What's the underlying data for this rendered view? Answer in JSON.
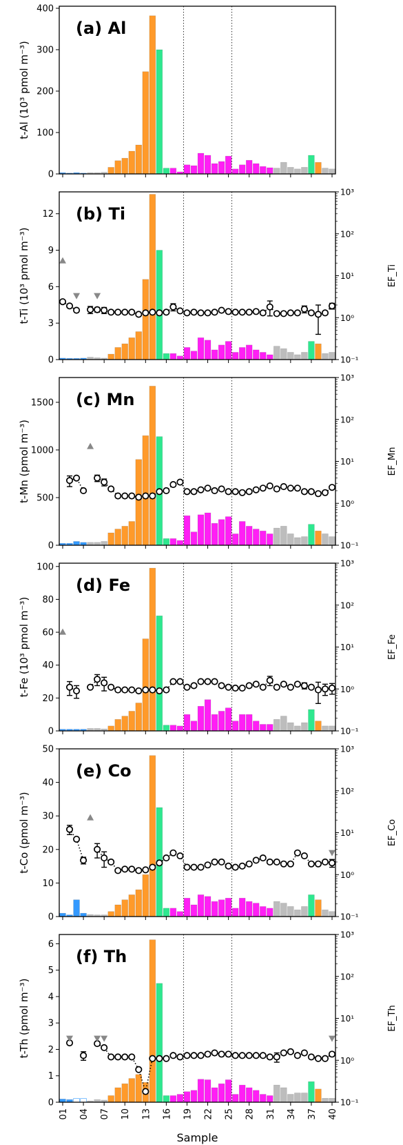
{
  "figure": {
    "xlabel": "Sample",
    "xtick_labels": [
      "01",
      "04",
      "07",
      "10",
      "13",
      "16",
      "19",
      "22",
      "25",
      "28",
      "31",
      "34",
      "37",
      "40"
    ],
    "xtick_samples": [
      1,
      4,
      7,
      10,
      13,
      16,
      19,
      22,
      25,
      28,
      31,
      34,
      37,
      40
    ],
    "dotted_lines_at": [
      18.5,
      25.5
    ]
  },
  "colors": {
    "blue": "#3399ff",
    "orange": "#ff9a2a",
    "green": "#2ee88f",
    "magenta": "#ff1ff5",
    "gray": "#bdbdbd",
    "errorbar": "#555555",
    "missing_marker": "#888888"
  },
  "bar_colors": [
    "blue",
    "blue",
    "blue",
    "blue",
    "gray",
    "gray",
    "gray",
    "orange",
    "orange",
    "orange",
    "orange",
    "orange",
    "orange",
    "orange",
    "green",
    "green",
    "magenta",
    "magenta",
    "magenta",
    "magenta",
    "magenta",
    "magenta",
    "magenta",
    "magenta",
    "magenta",
    "magenta",
    "magenta",
    "magenta",
    "magenta",
    "magenta",
    "magenta",
    "gray",
    "gray",
    "gray",
    "gray",
    "gray",
    "green",
    "orange",
    "gray",
    "gray"
  ],
  "chart_data": [
    {
      "type": "bar",
      "panel_label": "(a) Al",
      "ylabel": "t-Al  (10³ pmol m⁻³)",
      "ylim": [
        0,
        405
      ],
      "yticks": [
        0,
        100,
        200,
        300,
        400
      ],
      "x": [
        1,
        2,
        3,
        4,
        5,
        6,
        7,
        8,
        9,
        10,
        11,
        12,
        13,
        14,
        15,
        16,
        17,
        18,
        19,
        20,
        21,
        22,
        23,
        24,
        25,
        26,
        27,
        28,
        29,
        30,
        31,
        32,
        33,
        34,
        35,
        36,
        37,
        38,
        39,
        40
      ],
      "values": [
        3,
        2,
        3,
        2,
        3,
        3,
        4,
        16,
        32,
        38,
        55,
        70,
        247,
        382,
        300,
        14,
        14,
        5,
        22,
        20,
        50,
        45,
        25,
        30,
        43,
        12,
        22,
        33,
        25,
        18,
        15,
        14,
        28,
        16,
        12,
        16,
        45,
        28,
        14,
        12
      ],
      "has_ef": false
    },
    {
      "type": "bar",
      "panel_label": "(b) Ti",
      "ylabel": "t-Ti  (10³ pmol m⁻³)",
      "ylim": [
        0,
        13.8
      ],
      "yticks": [
        0,
        3,
        6,
        9,
        12
      ],
      "x": [
        1,
        2,
        3,
        4,
        5,
        6,
        7,
        8,
        9,
        10,
        11,
        12,
        13,
        14,
        15,
        16,
        17,
        18,
        19,
        20,
        21,
        22,
        23,
        24,
        25,
        26,
        27,
        28,
        29,
        30,
        31,
        32,
        33,
        34,
        35,
        36,
        37,
        38,
        39,
        40
      ],
      "values": [
        0.12,
        0.1,
        0.1,
        0.12,
        0.2,
        0.15,
        0.12,
        0.45,
        1.0,
        1.3,
        1.8,
        2.3,
        6.6,
        13.6,
        9.0,
        0.5,
        0.5,
        0.3,
        1.0,
        0.7,
        1.8,
        1.6,
        0.8,
        1.2,
        1.5,
        0.6,
        1.0,
        1.2,
        0.8,
        0.6,
        0.4,
        1.1,
        0.9,
        0.6,
        0.4,
        0.6,
        1.5,
        1.3,
        0.5,
        0.6
      ],
      "ef_axis_label": "EF_Ti",
      "ef_yticks": [
        "10⁻¹",
        "10⁰",
        "10¹",
        "10²",
        "10³"
      ],
      "ef": [
        2.4,
        1.9,
        1.5,
        null,
        1.55,
        1.55,
        1.5,
        1.35,
        1.35,
        1.35,
        1.35,
        1.2,
        1.3,
        1.35,
        1.3,
        1.35,
        1.8,
        1.45,
        1.3,
        1.35,
        1.3,
        1.3,
        1.35,
        1.5,
        1.4,
        1.35,
        1.35,
        1.35,
        1.4,
        1.3,
        1.8,
        1.25,
        1.25,
        1.3,
        1.3,
        1.6,
        1.3,
        1.2,
        1.3,
        1.9
      ],
      "ef_err": [
        0,
        0,
        0,
        0,
        0.3,
        0.2,
        0.25,
        0,
        0,
        0,
        0,
        0,
        0,
        0,
        0,
        0,
        0.35,
        0,
        0,
        0,
        0,
        0,
        0,
        0,
        0,
        0,
        0,
        0,
        0,
        0,
        0.7,
        0,
        0,
        0,
        0,
        0.3,
        0,
        0.8,
        0,
        0.3
      ],
      "ef_missing": [
        {
          "sample": 1,
          "dir": "up"
        },
        {
          "sample": 3,
          "dir": "down"
        },
        {
          "sample": 6,
          "dir": "down"
        }
      ]
    },
    {
      "type": "bar",
      "panel_label": "(c) Mn",
      "ylabel": "t-Mn  (pmol m⁻³)",
      "ylim": [
        0,
        1760
      ],
      "yticks": [
        0,
        500,
        1000,
        1500
      ],
      "x": [
        1,
        2,
        3,
        4,
        5,
        6,
        7,
        8,
        9,
        10,
        11,
        12,
        13,
        14,
        15,
        16,
        17,
        18,
        19,
        20,
        21,
        22,
        23,
        24,
        25,
        26,
        27,
        28,
        29,
        30,
        31,
        32,
        33,
        34,
        35,
        36,
        37,
        38,
        39,
        40
      ],
      "values": [
        20,
        20,
        40,
        30,
        30,
        30,
        40,
        130,
        170,
        200,
        250,
        900,
        1150,
        1670,
        1140,
        70,
        70,
        50,
        310,
        140,
        320,
        340,
        230,
        270,
        300,
        120,
        250,
        200,
        170,
        150,
        120,
        180,
        200,
        120,
        80,
        90,
        220,
        150,
        120,
        90
      ],
      "ef_axis_label": "EF_Mn",
      "ef_yticks": [
        "10⁻¹",
        "10⁰",
        "10¹",
        "10²",
        "10³"
      ],
      "ef": [
        null,
        3.5,
        4.0,
        2.0,
        null,
        4.0,
        3.2,
        2.2,
        1.5,
        1.5,
        1.5,
        1.4,
        1.5,
        1.5,
        1.9,
        2.0,
        2.8,
        3.2,
        1.9,
        1.9,
        2.1,
        2.3,
        2.0,
        2.2,
        1.9,
        1.9,
        1.8,
        1.9,
        2.1,
        2.3,
        2.6,
        2.2,
        2.5,
        2.3,
        2.3,
        1.9,
        1.9,
        1.7,
        1.8,
        2.4
      ],
      "ef_err": [
        0,
        1.0,
        0,
        0,
        0,
        0.7,
        0.6,
        0,
        0,
        0,
        0,
        0,
        0,
        0,
        0,
        0,
        0,
        0,
        0,
        0,
        0,
        0,
        0,
        0,
        0,
        0,
        0,
        0,
        0,
        0,
        0,
        0,
        0,
        0,
        0,
        0,
        0,
        0,
        0,
        0
      ],
      "ef_missing": [
        {
          "sample": 5,
          "dir": "up"
        }
      ]
    },
    {
      "type": "bar",
      "panel_label": "(d) Fe",
      "ylabel": "t-Fe  (10³ pmol m⁻³)",
      "ylim": [
        0,
        102
      ],
      "yticks": [
        0,
        20,
        40,
        60,
        80,
        100
      ],
      "x": [
        1,
        2,
        3,
        4,
        5,
        6,
        7,
        8,
        9,
        10,
        11,
        12,
        13,
        14,
        15,
        16,
        17,
        18,
        19,
        20,
        21,
        22,
        23,
        24,
        25,
        26,
        27,
        28,
        29,
        30,
        31,
        32,
        33,
        34,
        35,
        36,
        37,
        38,
        39,
        40
      ],
      "values": [
        1,
        1,
        1,
        1,
        1.5,
        1.5,
        1.2,
        3,
        7,
        9,
        12,
        17,
        56,
        99,
        70,
        3.5,
        3.5,
        3,
        10,
        6,
        15,
        19,
        10,
        12,
        14,
        6,
        10,
        10,
        6,
        4,
        4,
        7,
        9,
        5,
        3,
        5,
        13,
        6,
        3,
        3
      ],
      "ef_axis_label": "EF_Fe",
      "ef_yticks": [
        "10⁻¹",
        "10⁰",
        "10¹",
        "10²",
        "10³"
      ],
      "ef": [
        null,
        1.1,
        0.9,
        null,
        1.1,
        1.7,
        1.4,
        1.1,
        0.95,
        0.95,
        0.95,
        0.9,
        0.95,
        0.95,
        0.9,
        0.95,
        1.5,
        1.5,
        1.1,
        1.2,
        1.5,
        1.5,
        1.5,
        1.2,
        1.1,
        1.05,
        1.05,
        1.2,
        1.3,
        1.1,
        1.6,
        1.1,
        1.3,
        1.1,
        1.3,
        1.2,
        1.1,
        0.95,
        1.0,
        1.05
      ],
      "ef_err": [
        0,
        0.4,
        0.3,
        0,
        0,
        0.5,
        0.5,
        0,
        0,
        0,
        0,
        0,
        0,
        0,
        0,
        0,
        0,
        0,
        0,
        0,
        0,
        0,
        0,
        0,
        0,
        0,
        0,
        0,
        0,
        0,
        0.4,
        0,
        0,
        0,
        0,
        0.2,
        0,
        0.5,
        0.3,
        0.3
      ],
      "ef_missing": [
        {
          "sample": 1,
          "dir": "up"
        }
      ]
    },
    {
      "type": "bar",
      "panel_label": "(e) Co",
      "ylabel": "t-Co  (pmol m⁻³)",
      "ylim": [
        0,
        50
      ],
      "yticks": [
        0,
        10,
        20,
        30,
        40,
        50
      ],
      "x": [
        1,
        2,
        3,
        4,
        5,
        6,
        7,
        8,
        9,
        10,
        11,
        12,
        13,
        14,
        15,
        16,
        17,
        18,
        19,
        20,
        21,
        22,
        23,
        24,
        25,
        26,
        27,
        28,
        29,
        30,
        31,
        32,
        33,
        34,
        35,
        36,
        37,
        38,
        39,
        40
      ],
      "values": [
        1,
        0.5,
        5,
        1,
        0.6,
        0.5,
        0.5,
        1.5,
        3.5,
        5,
        6.5,
        8,
        12.5,
        48,
        32.5,
        2.5,
        2.5,
        1.5,
        5.5,
        3.5,
        6.5,
        6,
        4.5,
        5,
        5.5,
        2.5,
        5.5,
        4.5,
        4,
        3,
        2.5,
        4.5,
        4,
        3,
        2,
        3,
        6.5,
        5,
        2,
        1.5
      ],
      "ef_axis_label": "EF_Co",
      "ef_yticks": [
        "10⁻¹",
        "10⁰",
        "10¹",
        "10²",
        "10³"
      ],
      "ef": [
        null,
        12.0,
        7.0,
        2.2,
        null,
        4.0,
        2.5,
        2.0,
        1.25,
        1.35,
        1.35,
        1.25,
        1.3,
        1.5,
        1.9,
        2.5,
        3.3,
        2.8,
        1.5,
        1.5,
        1.5,
        1.7,
        2.0,
        2.0,
        1.6,
        1.5,
        1.6,
        1.8,
        2.2,
        2.5,
        2.0,
        2.0,
        1.8,
        1.8,
        3.3,
        2.8,
        1.8,
        1.8,
        2.0,
        1.9
      ],
      "ef_err": [
        0,
        3.0,
        0,
        0.4,
        0,
        1.5,
        1.0,
        0,
        0,
        0,
        0,
        0,
        0,
        0,
        0,
        0,
        0,
        0,
        0,
        0,
        0,
        0,
        0,
        0,
        0,
        0,
        0,
        0,
        0,
        0,
        0,
        0,
        0,
        0,
        0,
        0,
        0,
        0,
        0,
        0.4
      ],
      "ef_missing": [
        {
          "sample": 5,
          "dir": "up"
        },
        {
          "sample": 40,
          "dir": "down"
        }
      ]
    },
    {
      "type": "bar",
      "panel_label": "(f) Th",
      "ylabel": "t-Th  (pmol m⁻³)",
      "ylim": [
        0,
        6.35
      ],
      "yticks": [
        0,
        1,
        2,
        3,
        4,
        5,
        6
      ],
      "x": [
        1,
        2,
        3,
        4,
        5,
        6,
        7,
        8,
        9,
        10,
        11,
        12,
        13,
        14,
        15,
        16,
        17,
        18,
        19,
        20,
        21,
        22,
        23,
        24,
        25,
        26,
        27,
        28,
        29,
        30,
        31,
        32,
        33,
        34,
        35,
        36,
        37,
        38,
        39,
        40
      ],
      "values": [
        0.12,
        0.1,
        0.14,
        0.14,
        0.05,
        0.1,
        0.08,
        0.25,
        0.55,
        0.7,
        0.9,
        1.05,
        0.75,
        6.15,
        4.5,
        0.25,
        0.25,
        0.3,
        0.4,
        0.45,
        0.87,
        0.85,
        0.55,
        0.7,
        0.85,
        0.3,
        0.65,
        0.55,
        0.45,
        0.3,
        0.25,
        0.65,
        0.55,
        0.3,
        0.35,
        0.35,
        0.78,
        0.5,
        0.15,
        0.15
      ],
      "ef_axis_label": "EF_Th",
      "ef_yticks": [
        "10⁻¹",
        "10⁰",
        "10¹",
        "10²",
        "10³"
      ],
      "ef": [
        null,
        2.6,
        null,
        1.3,
        null,
        2.5,
        2.0,
        1.2,
        1.2,
        1.2,
        1.2,
        0.6,
        0.18,
        1.1,
        1.1,
        1.1,
        1.3,
        1.2,
        1.3,
        1.3,
        1.3,
        1.4,
        1.5,
        1.4,
        1.4,
        1.3,
        1.3,
        1.3,
        1.3,
        1.3,
        1.2,
        1.2,
        1.5,
        1.6,
        1.3,
        1.5,
        1.2,
        1.1,
        1.1,
        1.4
      ],
      "ef_err": [
        0,
        0,
        0,
        0.3,
        0,
        0,
        0,
        0,
        0,
        0,
        0,
        0,
        0,
        0,
        0,
        0,
        0,
        0,
        0,
        0,
        0,
        0,
        0,
        0,
        0,
        0,
        0,
        0,
        0,
        0,
        0,
        0.3,
        0,
        0,
        0,
        0,
        0,
        0,
        0,
        0
      ],
      "ef_missing": [
        {
          "sample": 2,
          "dir": "down"
        },
        {
          "sample": 6,
          "dir": "down"
        },
        {
          "sample": 7,
          "dir": "down"
        },
        {
          "sample": 40,
          "dir": "down"
        }
      ]
    }
  ]
}
